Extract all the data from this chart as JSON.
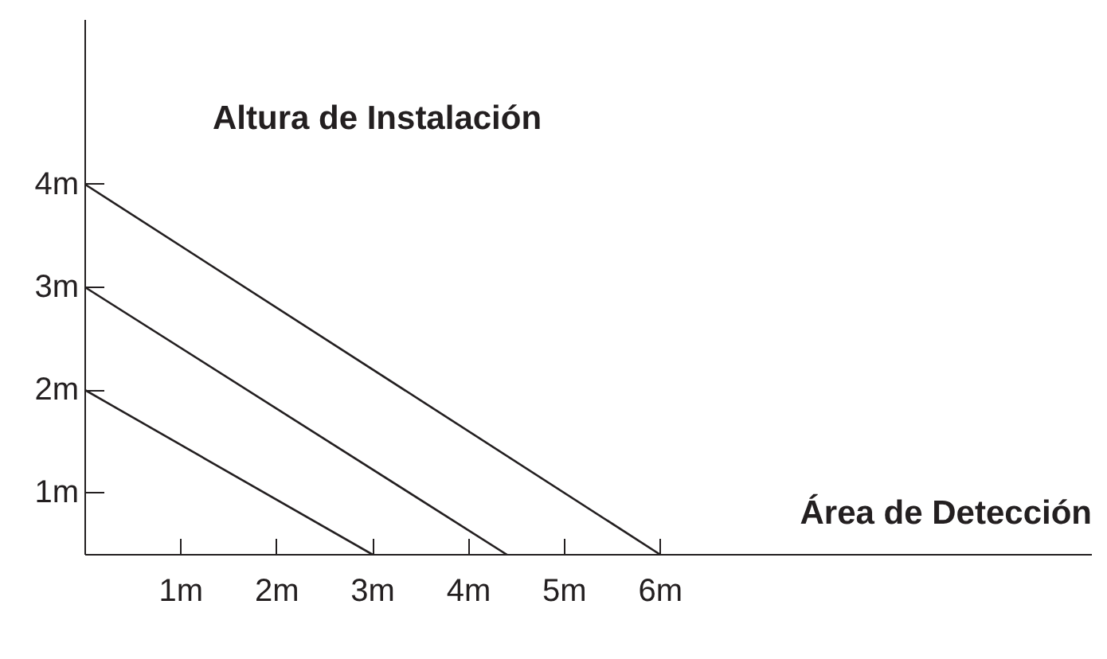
{
  "chart_data": {
    "type": "line",
    "xlabel": "Área de Detección",
    "ylabel": "Altura de Instalación",
    "xlim": [
      0,
      10.5
    ],
    "ylim": [
      0.4,
      5.6
    ],
    "xticks": [
      {
        "value": 1,
        "label": "1m"
      },
      {
        "value": 2,
        "label": "2m"
      },
      {
        "value": 3,
        "label": "3m"
      },
      {
        "value": 4,
        "label": "4m"
      },
      {
        "value": 5,
        "label": "5m"
      },
      {
        "value": 6,
        "label": "6m"
      }
    ],
    "yticks": [
      {
        "value": 1,
        "label": "1m"
      },
      {
        "value": 2,
        "label": "2m"
      },
      {
        "value": 3,
        "label": "3m"
      },
      {
        "value": 4,
        "label": "4m"
      }
    ],
    "series": [
      {
        "color": "#231f20",
        "x": [
          0,
          3
        ],
        "values": [
          2,
          0.4
        ]
      },
      {
        "color": "#231f20",
        "x": [
          0,
          4.4
        ],
        "values": [
          3,
          0.4
        ]
      },
      {
        "color": "#231f20",
        "x": [
          0,
          6
        ],
        "values": [
          4,
          0.4
        ]
      }
    ],
    "grid": false,
    "marker": "none",
    "line_style": "solid"
  }
}
